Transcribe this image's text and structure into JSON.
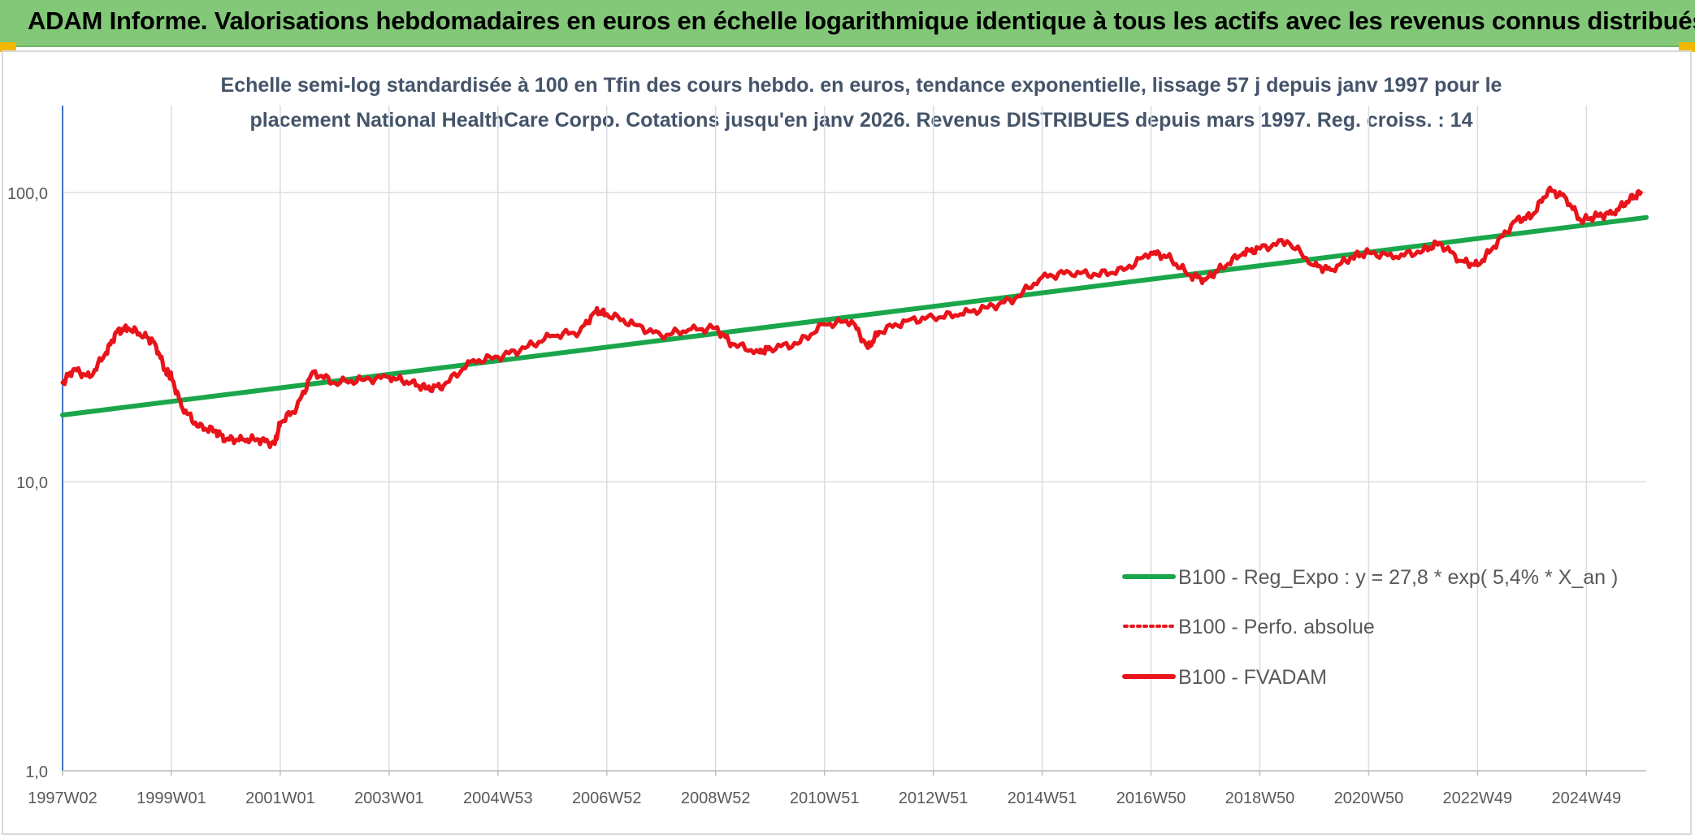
{
  "header": {
    "title": "ADAM Informe. Valorisations hebdomadaires en euros en échelle logarithmique identique à tous les actifs avec les revenus connus distribués"
  },
  "chart_data": {
    "type": "line",
    "title_line1": "Echelle semi-log standardisée à 100 en Tfin des cours hebdo. en euros, tendance exponentielle, lissage 57 j depuis janv 1997 pour le",
    "title_line2": "placement National HealthCare Corpo. Cotations jusqu'en janv 2026. Revenus DISTRIBUES depuis mars 1997. Reg. croiss. : 14",
    "y_scale": "log",
    "ylim": [
      1,
      200
    ],
    "y_ticks": [
      {
        "value": 1,
        "label": "1,0"
      },
      {
        "value": 10,
        "label": "10,0"
      },
      {
        "value": 100,
        "label": "100,0"
      }
    ],
    "xlim": [
      1997.0,
      2026.1
    ],
    "x_ticks": [
      {
        "t": 1997.0,
        "label": "1997W02"
      },
      {
        "t": 1999.0,
        "label": "1999W01"
      },
      {
        "t": 2001.0,
        "label": "2001W01"
      },
      {
        "t": 2003.0,
        "label": "2003W01"
      },
      {
        "t": 2005.0,
        "label": "2004W53"
      },
      {
        "t": 2007.0,
        "label": "2006W52"
      },
      {
        "t": 2009.0,
        "label": "2008W52"
      },
      {
        "t": 2011.0,
        "label": "2010W51"
      },
      {
        "t": 2013.0,
        "label": "2012W51"
      },
      {
        "t": 2015.0,
        "label": "2014W51"
      },
      {
        "t": 2017.0,
        "label": "2016W50"
      },
      {
        "t": 2019.0,
        "label": "2018W50"
      },
      {
        "t": 2021.0,
        "label": "2020W50"
      },
      {
        "t": 2023.0,
        "label": "2022W49"
      },
      {
        "t": 2025.0,
        "label": "2024W49"
      }
    ],
    "legend": [
      {
        "label": "B100 - Reg_Expo : y = 27,8 * exp( 5,4% *  X_an )",
        "color": "#1aa64a",
        "style": "solid"
      },
      {
        "label": "B100 - Perfo. absolue",
        "color": "#e8141a",
        "style": "dotted"
      },
      {
        "label": "B100 - FVADAM",
        "color": "#e8141a",
        "style": "solid"
      }
    ],
    "series": [
      {
        "name": "B100 - Reg_Expo : y = 27,8 * exp( 5,4% *  X_an )",
        "color": "#1aa64a",
        "t": [
          1997.0,
          2026.1
        ],
        "values": [
          17.0,
          82.0
        ]
      },
      {
        "name": "B100 - FVADAM",
        "color": "#e8141a",
        "t": [
          1997.0,
          1997.2,
          1997.5,
          1997.8,
          1998.0,
          1998.2,
          1998.5,
          1998.7,
          1998.9,
          1999.0,
          1999.2,
          1999.5,
          1999.8,
          2000.0,
          2000.3,
          2000.6,
          2000.9,
          2001.0,
          2001.3,
          2001.6,
          2002.0,
          2002.5,
          2003.0,
          2003.4,
          2003.7,
          2004.0,
          2004.5,
          2005.0,
          2005.5,
          2006.0,
          2006.5,
          2006.8,
          2007.0,
          2007.5,
          2008.0,
          2008.5,
          2009.0,
          2009.3,
          2009.8,
          2010.0,
          2010.5,
          2011.0,
          2011.5,
          2011.8,
          2012.0,
          2012.5,
          2013.0,
          2013.5,
          2014.0,
          2014.5,
          2015.0,
          2015.5,
          2016.0,
          2016.5,
          2017.0,
          2017.3,
          2017.7,
          2018.0,
          2018.3,
          2018.7,
          2019.0,
          2019.5,
          2020.0,
          2020.3,
          2020.7,
          2021.0,
          2021.5,
          2022.0,
          2022.3,
          2022.7,
          2023.0,
          2023.3,
          2023.7,
          2024.0,
          2024.3,
          2024.6,
          2024.9,
          2025.2,
          2025.5,
          2025.8,
          2026.0
        ],
        "values": [
          22,
          24.5,
          23,
          28,
          33,
          34,
          32,
          30,
          24,
          23,
          18,
          15.5,
          15,
          14,
          14,
          14,
          13.5,
          16,
          18,
          24,
          22,
          22.5,
          23,
          22,
          21,
          21.5,
          26,
          27,
          29,
          32,
          33,
          39,
          38,
          35,
          32,
          33.5,
          34,
          30,
          28,
          29,
          30,
          35,
          36,
          29,
          33,
          36,
          37,
          38,
          40,
          43,
          51,
          53,
          52,
          54,
          62,
          60,
          52,
          50,
          55,
          62,
          64,
          68,
          56,
          54,
          60,
          62,
          60,
          63,
          67,
          58,
          56,
          65,
          80,
          83,
          102,
          97,
          80,
          83,
          85,
          95,
          100
        ]
      }
    ]
  }
}
